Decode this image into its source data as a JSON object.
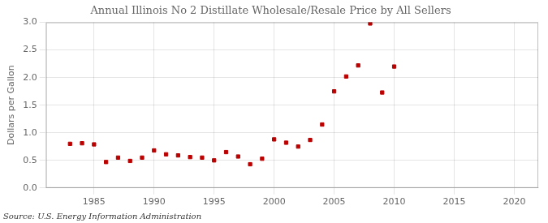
{
  "chart_data": {
    "type": "scatter",
    "title": "Annual Illinois No 2 Distillate Wholesale/Resale Price by All Sellers",
    "ylabel": "Dollars per Gallon",
    "annotation": "Source: U.S. Energy Information Administration",
    "x": [
      1983,
      1984,
      1985,
      1986,
      1987,
      1988,
      1989,
      1990,
      1991,
      1992,
      1993,
      1994,
      1995,
      1996,
      1997,
      1998,
      1999,
      2000,
      2001,
      2002,
      2003,
      2004,
      2005,
      2006,
      2007,
      2008,
      2009,
      2010
    ],
    "values": [
      0.8,
      0.81,
      0.79,
      0.47,
      0.55,
      0.49,
      0.55,
      0.68,
      0.61,
      0.59,
      0.56,
      0.55,
      0.5,
      0.65,
      0.57,
      0.43,
      0.53,
      0.88,
      0.82,
      0.75,
      0.87,
      1.15,
      1.75,
      2.02,
      2.22,
      2.98,
      1.73,
      2.2
    ],
    "color": "#bb0000",
    "marker": "square",
    "xlim": [
      1981,
      2022
    ],
    "ylim": [
      0.0,
      3.0
    ],
    "xticks": [
      1985,
      1990,
      1995,
      2000,
      2005,
      2010,
      2015,
      2020
    ],
    "yticks": [
      {
        "value": 0.0,
        "label": "0.0"
      },
      {
        "value": 0.5,
        "label": "0.5"
      },
      {
        "value": 1.0,
        "label": "1.0"
      },
      {
        "value": 1.5,
        "label": "1.5"
      },
      {
        "value": 2.0,
        "label": "2.0"
      },
      {
        "value": 2.5,
        "label": "2.5"
      },
      {
        "value": 3.0,
        "label": "3.0"
      }
    ],
    "grid": true
  }
}
